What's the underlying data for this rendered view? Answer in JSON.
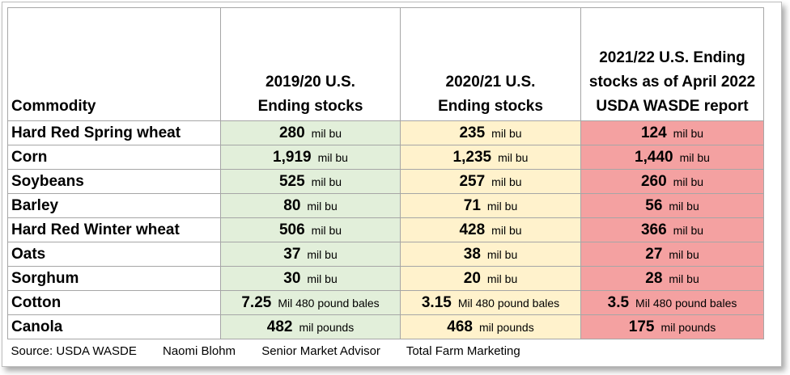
{
  "headers": {
    "commodity": "Commodity",
    "col1": [
      "2019/20  U.S.",
      "Ending stocks"
    ],
    "col2": [
      "2020/21 U.S.",
      "Ending stocks"
    ],
    "col3": [
      "2021/22 U.S. Ending",
      "stocks as of April 2022",
      "USDA WASDE report"
    ]
  },
  "colors": {
    "col1": "#e2efda",
    "col2": "#fff2cc",
    "col3": "#f4a1a1"
  },
  "rows": [
    {
      "name": "Hard Red Spring wheat",
      "v1": "280",
      "u1": "mil bu",
      "v2": "235",
      "u2": "mil bu",
      "v3": "124",
      "u3": "mil bu"
    },
    {
      "name": "Corn",
      "v1": "1,919",
      "u1": "mil bu",
      "v2": "1,235",
      "u2": "mil bu",
      "v3": "1,440",
      "u3": "mil bu"
    },
    {
      "name": "Soybeans",
      "v1": "525",
      "u1": "mil bu",
      "v2": "257",
      "u2": "mil bu",
      "v3": "260",
      "u3": "mil bu"
    },
    {
      "name": "Barley",
      "v1": "80",
      "u1": "mil bu",
      "v2": "71",
      "u2": "mil bu",
      "v3": "56",
      "u3": "mil bu"
    },
    {
      "name": "Hard Red Winter wheat",
      "v1": "506",
      "u1": "mil bu",
      "v2": "428",
      "u2": "mil bu",
      "v3": "366",
      "u3": "mil bu"
    },
    {
      "name": "Oats",
      "v1": "37",
      "u1": "mil bu",
      "v2": "38",
      "u2": "mil bu",
      "v3": "27",
      "u3": "mil bu"
    },
    {
      "name": "Sorghum",
      "v1": "30",
      "u1": "mil bu",
      "v2": "20",
      "u2": "mil bu",
      "v3": "28",
      "u3": "mil bu"
    },
    {
      "name": "Cotton",
      "v1": "7.25",
      "u1": "Mil 480 pound bales",
      "v2": "3.15",
      "u2": "Mil 480 pound bales",
      "v3": "3.5",
      "u3": "Mil 480 pound bales"
    },
    {
      "name": "Canola",
      "v1": "482",
      "u1": "mil pounds",
      "v2": "468",
      "u2": "mil pounds",
      "v3": "175",
      "u3": "mil pounds"
    }
  ],
  "footer": [
    "Source: USDA WASDE",
    "Naomi Blohm",
    "Senior Market Advisor",
    "Total Farm Marketing"
  ]
}
